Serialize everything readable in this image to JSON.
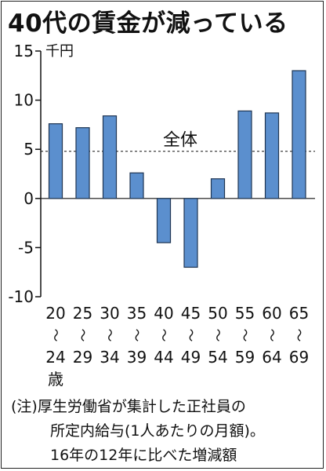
{
  "title": "40代の賃金が減っている",
  "chart_data": {
    "type": "bar",
    "unit": "千円",
    "categories": [
      {
        "from": "20",
        "to": "24",
        "suffix": "歳"
      },
      {
        "from": "25",
        "to": "29"
      },
      {
        "from": "30",
        "to": "34"
      },
      {
        "from": "35",
        "to": "39"
      },
      {
        "from": "40",
        "to": "44"
      },
      {
        "from": "45",
        "to": "49"
      },
      {
        "from": "50",
        "to": "54"
      },
      {
        "from": "55",
        "to": "59"
      },
      {
        "from": "60",
        "to": "64"
      },
      {
        "from": "65",
        "to": "69"
      }
    ],
    "range_mark": "～",
    "values": [
      7.6,
      7.2,
      8.4,
      2.6,
      -4.5,
      -7.0,
      2.0,
      8.9,
      8.7,
      13.0
    ],
    "reference_line": {
      "label": "全体",
      "value": 4.8
    },
    "ylim": [
      -10,
      15
    ],
    "yticks": [
      15,
      10,
      5,
      0,
      -5,
      -10
    ],
    "ytick_labels": [
      "15",
      "10",
      "5",
      "0",
      "-5",
      "-10"
    ],
    "bar_color": "#5b8fce",
    "bar_edge_color": "#1f3552",
    "grid": false
  },
  "note": [
    "(注)厚生労働省が集計した正社員の",
    "所定内給与(1人あたりの月額)。",
    "16年の12年に比べた増減額"
  ]
}
